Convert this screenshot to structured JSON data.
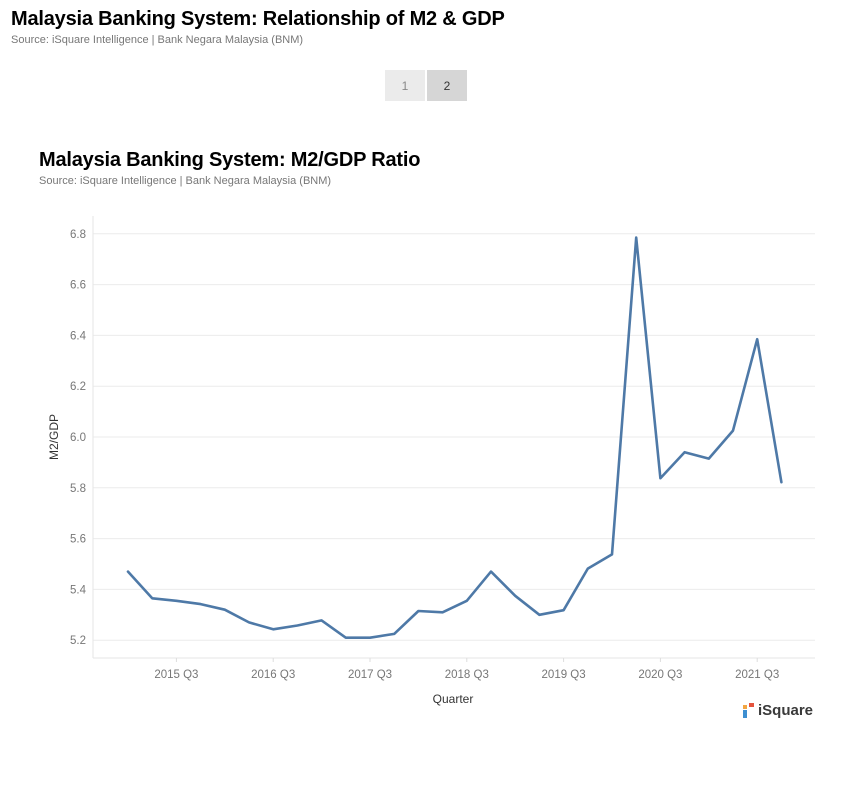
{
  "header": {
    "title": "Malaysia Banking System: Relationship of M2 & GDP",
    "source": "Source: iSquare Intelligence | Bank Negara Malaysia (BNM)"
  },
  "pager": {
    "pages": [
      "1",
      "2"
    ],
    "active": "2"
  },
  "brand": {
    "logo_text": "iSquare"
  },
  "colors": {
    "line": "#4e79a7",
    "grid": "#ebebeb",
    "axis_text": "#777777"
  },
  "chart_data": {
    "type": "line",
    "title": "Malaysia Banking System: M2/GDP Ratio",
    "subtitle": "Source: iSquare Intelligence | Bank Negara Malaysia (BNM)",
    "xlabel": "Quarter",
    "ylabel": "M2/GDP",
    "ylim": [
      5.13,
      6.87
    ],
    "yticks": [
      "5.2",
      "5.4",
      "5.6",
      "5.8",
      "6.0",
      "6.2",
      "6.4",
      "6.6",
      "6.8"
    ],
    "xticks": [
      "2015 Q3",
      "2016 Q3",
      "2017 Q3",
      "2018 Q3",
      "2019 Q3",
      "2020 Q3",
      "2021 Q3"
    ],
    "grid": true,
    "legend": "none",
    "x": [
      "2015 Q1",
      "2015 Q2",
      "2015 Q3",
      "2015 Q4",
      "2016 Q1",
      "2016 Q2",
      "2016 Q3",
      "2016 Q4",
      "2017 Q1",
      "2017 Q2",
      "2017 Q3",
      "2017 Q4",
      "2018 Q1",
      "2018 Q2",
      "2018 Q3",
      "2018 Q4",
      "2019 Q1",
      "2019 Q2",
      "2019 Q3",
      "2019 Q4",
      "2020 Q1",
      "2020 Q2",
      "2020 Q3",
      "2020 Q4",
      "2021 Q1",
      "2021 Q2",
      "2021 Q3",
      "2021 Q4"
    ],
    "series": [
      {
        "values": [
          5.47,
          5.365,
          5.355,
          5.342,
          5.32,
          5.27,
          5.243,
          5.258,
          5.278,
          5.21,
          5.21,
          5.225,
          5.315,
          5.31,
          5.355,
          5.47,
          5.375,
          5.3,
          5.318,
          5.482,
          5.538,
          6.785,
          5.838,
          5.94,
          5.915,
          6.025,
          6.385,
          5.822
        ]
      }
    ]
  }
}
